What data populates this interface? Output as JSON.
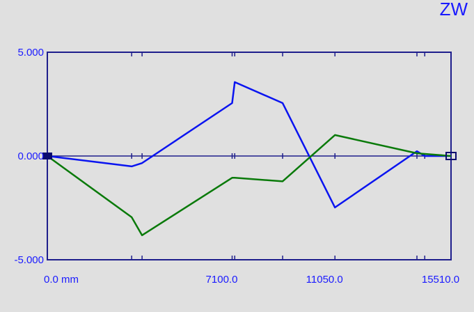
{
  "chart_data": {
    "type": "line",
    "title": "ZW",
    "xlabel": "",
    "ylabel": "",
    "xlim": [
      0,
      15510
    ],
    "ylim": [
      -5,
      5
    ],
    "x_tick_labels": [
      {
        "value": 0,
        "label": "0.0 mm"
      },
      {
        "value": 7100,
        "label": "7100.0"
      },
      {
        "value": 11050,
        "label": "11050.0"
      },
      {
        "value": 15510,
        "label": "15510.0"
      }
    ],
    "y_tick_labels": [
      {
        "value": 5,
        "label": "5.000"
      },
      {
        "value": 0,
        "label": "0.000"
      },
      {
        "value": -5,
        "label": "-5.000"
      }
    ],
    "x_minor_ticks": [
      3240,
      3640,
      7100,
      7200,
      9040,
      11050,
      14200,
      14500
    ],
    "grid": false,
    "series": [
      {
        "color": "#0a14f0",
        "x": [
          0,
          3240,
          3640,
          7100,
          7200,
          9040,
          11050,
          14200,
          14500,
          15510
        ],
        "y": [
          0,
          -0.5,
          -0.34,
          2.55,
          3.56,
          2.55,
          -2.48,
          0.23,
          0,
          0
        ]
      },
      {
        "color": "#0a7a0a",
        "x": [
          0,
          3240,
          3640,
          7100,
          7200,
          9040,
          11050,
          14200,
          14500,
          15510
        ],
        "y": [
          0,
          -2.95,
          -3.82,
          -1.05,
          -1.05,
          -1.22,
          1.01,
          0.13,
          0.1,
          0
        ]
      }
    ],
    "colors": {
      "axis": "#1e1e8c",
      "labels": "#1a1aff",
      "background": "#e0e0e0"
    }
  }
}
